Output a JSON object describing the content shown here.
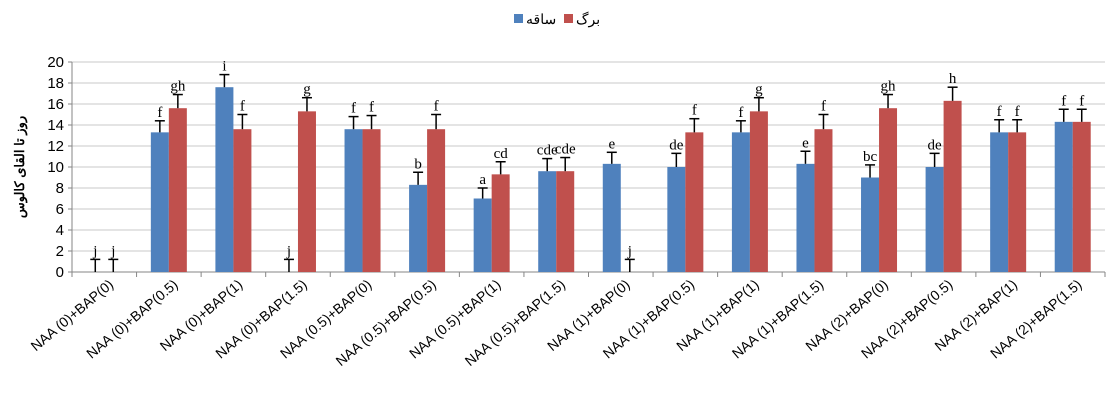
{
  "chart_data": {
    "type": "bar",
    "ylabel": "روز تا القای کالوس",
    "xlabel": "",
    "ylim": [
      0,
      20
    ],
    "yticks": [
      0,
      2,
      4,
      6,
      8,
      10,
      12,
      14,
      16,
      18,
      20
    ],
    "grid": "horizontal",
    "legend": "top-center",
    "error_bars": true,
    "categories": [
      "NAA (0)+BAP(0)",
      "NAA (0)+BAP(0.5)",
      "NAA (0)+BAP(1)",
      "NAA (0)+BAP(1.5)",
      "NAA (0.5)+BAP(0)",
      "NAA (0.5)+BAP(0.5)",
      "NAA (0.5)+BAP(1)",
      "NAA (0.5)+BAP(1.5)",
      "NAA (1)+BAP(0)",
      "NAA (1)+BAP(0.5)",
      "NAA (1)+BAP(1)",
      "NAA (1)+BAP(1.5)",
      "NAA (2)+BAP(0)",
      "NAA (2)+BAP(0.5)",
      "NAA (2)+BAP(1)",
      "NAA (2)+BAP(1.5)"
    ],
    "series": [
      {
        "name": "ساقه",
        "color": "#4F81BD",
        "values": [
          0,
          13.3,
          17.6,
          0,
          13.6,
          8.3,
          7.0,
          9.6,
          10.3,
          10.0,
          13.3,
          10.3,
          9.0,
          10.0,
          13.3,
          14.3
        ],
        "errors": [
          1.2,
          1.1,
          1.2,
          1.2,
          1.2,
          1.2,
          1.0,
          1.2,
          1.1,
          1.3,
          1.1,
          1.2,
          1.2,
          1.3,
          1.2,
          1.2
        ],
        "letters": [
          "j",
          "f",
          "i",
          "j",
          "f",
          "b",
          "a",
          "cde",
          "e",
          "de",
          "f",
          "e",
          "bc",
          "de",
          "f",
          "f"
        ]
      },
      {
        "name": "برگ",
        "color": "#C0504D",
        "values": [
          0,
          15.6,
          13.6,
          15.3,
          13.6,
          13.6,
          9.3,
          9.6,
          0,
          13.3,
          15.3,
          13.6,
          15.6,
          16.3,
          13.3,
          14.3
        ],
        "errors": [
          1.2,
          1.3,
          1.4,
          1.3,
          1.3,
          1.4,
          1.2,
          1.3,
          1.2,
          1.3,
          1.3,
          1.4,
          1.3,
          1.3,
          1.2,
          1.2
        ],
        "letters": [
          "j",
          "gh",
          "f",
          "g",
          "f",
          "f",
          "cd",
          "cde",
          "j",
          "f",
          "g",
          "f",
          "gh",
          "h",
          "f",
          "f"
        ]
      }
    ]
  }
}
